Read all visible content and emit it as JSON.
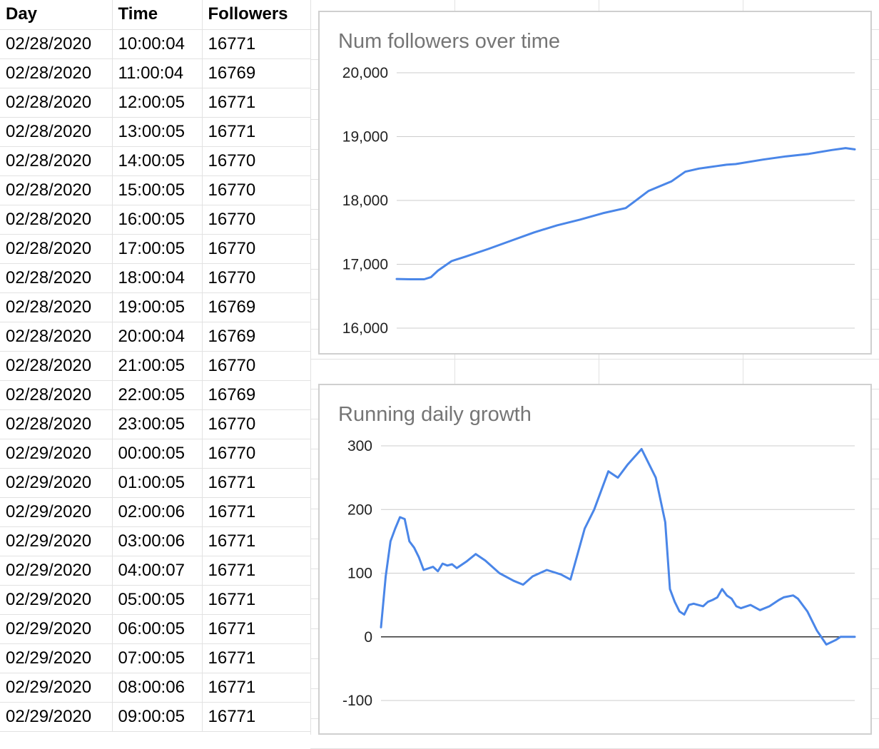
{
  "sheet": {
    "headers": [
      "Day",
      "Time",
      "Followers"
    ],
    "rows": [
      [
        "02/28/2020",
        "10:00:04",
        "16771"
      ],
      [
        "02/28/2020",
        "11:00:04",
        "16769"
      ],
      [
        "02/28/2020",
        "12:00:05",
        "16771"
      ],
      [
        "02/28/2020",
        "13:00:05",
        "16771"
      ],
      [
        "02/28/2020",
        "14:00:05",
        "16770"
      ],
      [
        "02/28/2020",
        "15:00:05",
        "16770"
      ],
      [
        "02/28/2020",
        "16:00:05",
        "16770"
      ],
      [
        "02/28/2020",
        "17:00:05",
        "16770"
      ],
      [
        "02/28/2020",
        "18:00:04",
        "16770"
      ],
      [
        "02/28/2020",
        "19:00:05",
        "16769"
      ],
      [
        "02/28/2020",
        "20:00:04",
        "16769"
      ],
      [
        "02/28/2020",
        "21:00:05",
        "16770"
      ],
      [
        "02/28/2020",
        "22:00:05",
        "16769"
      ],
      [
        "02/28/2020",
        "23:00:05",
        "16770"
      ],
      [
        "02/29/2020",
        "00:00:05",
        "16770"
      ],
      [
        "02/29/2020",
        "01:00:05",
        "16771"
      ],
      [
        "02/29/2020",
        "02:00:06",
        "16771"
      ],
      [
        "02/29/2020",
        "03:00:06",
        "16771"
      ],
      [
        "02/29/2020",
        "04:00:07",
        "16771"
      ],
      [
        "02/29/2020",
        "05:00:05",
        "16771"
      ],
      [
        "02/29/2020",
        "06:00:05",
        "16771"
      ],
      [
        "02/29/2020",
        "07:00:05",
        "16771"
      ],
      [
        "02/29/2020",
        "08:00:06",
        "16771"
      ],
      [
        "02/29/2020",
        "09:00:05",
        "16771"
      ]
    ]
  },
  "chart_data": [
    {
      "type": "line",
      "title": "Num followers over time",
      "xlabel": "",
      "ylabel": "",
      "ylim": [
        16000,
        20000
      ],
      "yticks": [
        20000,
        19000,
        18000,
        17000,
        16000
      ],
      "ytick_labels": [
        "20,000",
        "19,000",
        "18,000",
        "17,000",
        "16,000"
      ],
      "grid": true,
      "line_color": "#4a86e8",
      "x_range": [
        0,
        1
      ],
      "series": [
        {
          "x": [
            0,
            0.03,
            0.06,
            0.075,
            0.09,
            0.12,
            0.15,
            0.2,
            0.25,
            0.3,
            0.35,
            0.4,
            0.45,
            0.5,
            0.55,
            0.6,
            0.63,
            0.66,
            0.68,
            0.7,
            0.72,
            0.74,
            0.8,
            0.85,
            0.9,
            0.95,
            0.98,
            1.0
          ],
          "y": [
            16770,
            16765,
            16765,
            16800,
            16900,
            17050,
            17120,
            17240,
            17370,
            17500,
            17610,
            17700,
            17800,
            17880,
            18150,
            18300,
            18450,
            18500,
            18520,
            18540,
            18560,
            18570,
            18640,
            18690,
            18730,
            18790,
            18820,
            18800
          ]
        }
      ]
    },
    {
      "type": "line",
      "title": "Running daily growth",
      "xlabel": "",
      "ylabel": "",
      "ylim": [
        -100,
        300
      ],
      "yticks": [
        300,
        200,
        100,
        0,
        -100
      ],
      "ytick_labels": [
        "300",
        "200",
        "100",
        "0",
        "-100"
      ],
      "grid": true,
      "line_color": "#4a86e8",
      "x_range": [
        0,
        1
      ],
      "series": [
        {
          "x": [
            0,
            0.01,
            0.02,
            0.03,
            0.04,
            0.05,
            0.06,
            0.07,
            0.08,
            0.09,
            0.11,
            0.12,
            0.13,
            0.14,
            0.15,
            0.16,
            0.18,
            0.2,
            0.22,
            0.25,
            0.28,
            0.3,
            0.32,
            0.35,
            0.38,
            0.4,
            0.43,
            0.45,
            0.48,
            0.5,
            0.52,
            0.55,
            0.58,
            0.6,
            0.61,
            0.62,
            0.63,
            0.64,
            0.65,
            0.66,
            0.68,
            0.69,
            0.7,
            0.71,
            0.72,
            0.73,
            0.74,
            0.75,
            0.76,
            0.78,
            0.8,
            0.82,
            0.84,
            0.85,
            0.87,
            0.88,
            0.9,
            0.92,
            0.94,
            0.96,
            0.97,
            0.98,
            0.99,
            1.0
          ],
          "y": [
            15,
            95,
            150,
            170,
            188,
            185,
            150,
            140,
            125,
            105,
            110,
            103,
            115,
            112,
            114,
            108,
            118,
            130,
            120,
            100,
            88,
            82,
            95,
            105,
            98,
            90,
            170,
            200,
            260,
            250,
            270,
            295,
            250,
            180,
            75,
            55,
            40,
            35,
            50,
            52,
            48,
            55,
            58,
            62,
            75,
            65,
            60,
            48,
            45,
            50,
            42,
            48,
            58,
            62,
            65,
            60,
            40,
            10,
            -12,
            -5,
            0,
            0,
            0,
            0
          ],
          "note": ""
        }
      ]
    }
  ]
}
